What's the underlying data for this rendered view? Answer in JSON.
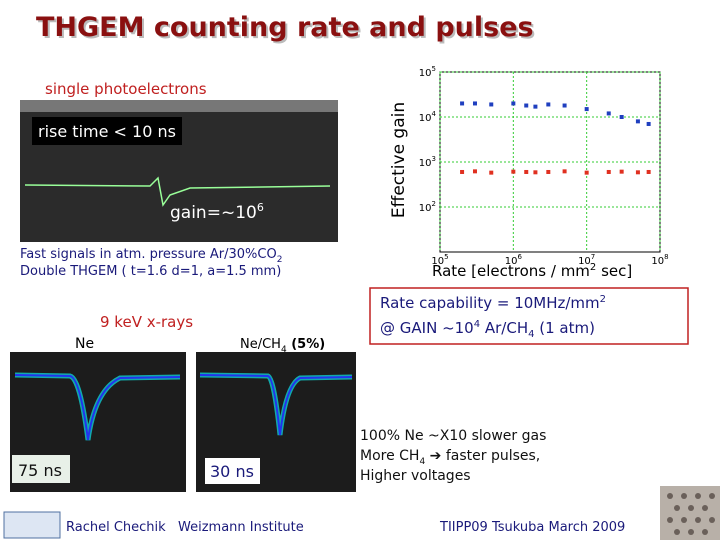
{
  "title": "THGEM counting rate and pulses",
  "single_pe": {
    "label": "single photoelectrons",
    "rise_time": "rise time < 10 ns",
    "gain": "gain=~10",
    "gain_exp": "6"
  },
  "fast_signals": {
    "line1": [
      "Fast signals in atm. pressure Ar/30%CO",
      "2"
    ],
    "line2": "Double THGEM ( t=1.6 d=1, a=1.5 mm)"
  },
  "xrays": {
    "label": "9 keV x-rays",
    "left_gas": "Ne",
    "right_gas": [
      "Ne/CH",
      "4",
      " (5%)"
    ],
    "left_time": "75 ns",
    "right_time": "30 ns"
  },
  "rate_capability": {
    "line1": [
      "Rate capability = 10MHz/mm",
      "2"
    ],
    "line2": [
      "@  GAIN ~10",
      "4",
      "    Ar/CH",
      "4",
      " (1 atm)"
    ]
  },
  "notes": {
    "line1": "100% Ne ~X10 slower gas",
    "line2": [
      "More CH",
      "4",
      " ➔ faster pulses,"
    ],
    "line3": "Higher voltages"
  },
  "footer": {
    "author": "Rachel Chechik",
    "institute": "Weizmann Institute",
    "event": "TIIPP09 Tsukuba March 2009"
  },
  "chart_data": {
    "type": "scatter",
    "y_label": "Effective gain",
    "x_label": [
      "Rate  [electrons / mm",
      "2",
      " sec]"
    ],
    "log_x": true,
    "log_y": true,
    "grid": true,
    "xlim": [
      100000,
      100000000
    ],
    "ylim": [
      10,
      100000
    ],
    "xticks": [
      {
        "value": 100000,
        "label": "10",
        "exp": "5"
      },
      {
        "value": 1000000,
        "label": "10",
        "exp": "6"
      },
      {
        "value": 10000000,
        "label": "10",
        "exp": "7"
      },
      {
        "value": 100000000,
        "label": "10",
        "exp": "8"
      }
    ],
    "yticks": [
      {
        "value": 100,
        "label": "10",
        "exp": "2"
      },
      {
        "value": 1000,
        "label": "10",
        "exp": "3"
      },
      {
        "value": 10000,
        "label": "10",
        "exp": "4"
      },
      {
        "value": 100000,
        "label": "10",
        "exp": "5"
      }
    ],
    "x": [
      200000,
      300000,
      500000,
      1000000,
      1500000,
      2000000,
      3000000,
      5000000,
      10000000,
      20000000,
      30000000,
      50000000,
      70000000
    ],
    "series": [
      {
        "color": "#1f3fbf",
        "values": [
          20000,
          20000,
          19000,
          20000,
          18000,
          17000,
          19000,
          18000,
          15000,
          12000,
          10000,
          8000,
          7000
        ]
      },
      {
        "color": "#e03020",
        "values": [
          600,
          620,
          580,
          610,
          600,
          590,
          600,
          620,
          580,
          600,
          610,
          590,
          600
        ]
      }
    ]
  }
}
